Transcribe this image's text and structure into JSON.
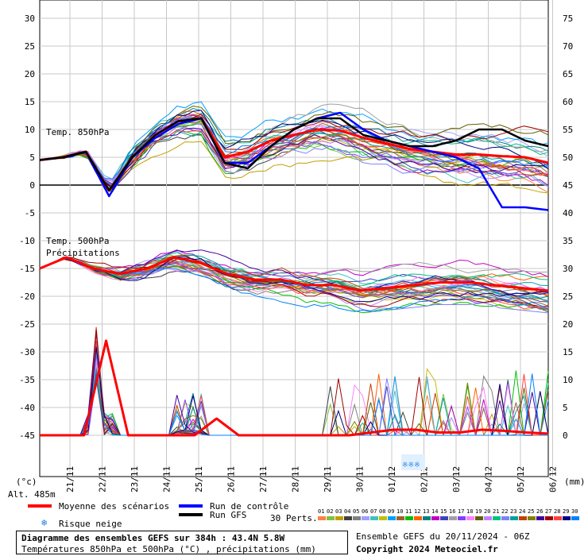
{
  "chart_data": {
    "type": "line",
    "dates": [
      "21/11",
      "22/11",
      "23/11",
      "24/11",
      "25/11",
      "26/11",
      "27/11",
      "28/11",
      "29/11",
      "30/11",
      "01/12",
      "02/12",
      "03/12",
      "04/12",
      "05/12",
      "06/12"
    ],
    "left_axis": {
      "ticks": [
        30,
        25,
        20,
        15,
        10,
        5,
        0,
        -5,
        -10,
        -15,
        -20,
        -25,
        -30,
        -35,
        -40,
        -45
      ],
      "unit_label": "(°c)"
    },
    "right_axis": {
      "ticks": [
        75,
        70,
        65,
        60,
        55,
        50,
        45,
        40,
        35,
        30,
        25,
        20,
        15,
        10,
        5,
        0
      ],
      "unit_label": "(mm)"
    },
    "labels": {
      "t850": "Temp. 850hPa",
      "t500": "Temp. 500hPa",
      "precip": "Précipitations",
      "altitude": "Alt. 485m"
    },
    "series": [
      {
        "name": "Moyenne des scénarios",
        "color": "#ff0000",
        "t850": [
          4.5,
          5,
          6,
          -1,
          5,
          9,
          11.5,
          12,
          5,
          6,
          8,
          9,
          10,
          9.8,
          8.5,
          7.5,
          6.5,
          6,
          5.5,
          5.5,
          5.2,
          5,
          4
        ],
        "t500": [
          -15,
          -13,
          -15,
          -16,
          -15,
          -13,
          -14,
          -16,
          -17,
          -17,
          -18,
          -18,
          -19,
          -18.5,
          -18,
          -17.5,
          -17.5,
          -18,
          -18.5,
          -19
        ],
        "precip": [
          0,
          0,
          0,
          17,
          0,
          0,
          0,
          0,
          3,
          0,
          0,
          0,
          0,
          0,
          0,
          0.5,
          1,
          1,
          0.5,
          0.5,
          1,
          0.8,
          0.5,
          0.3
        ]
      },
      {
        "name": "Run de contrôle",
        "color": "#0000ff",
        "t850": [
          4.5,
          5,
          6,
          -2,
          5,
          8.5,
          11,
          12,
          4,
          4,
          7,
          10,
          12,
          13,
          10,
          8,
          7,
          6,
          5,
          3,
          -4,
          -4,
          -4.5
        ]
      },
      {
        "name": "Run GFS",
        "color": "#000000",
        "t850": [
          4.5,
          5,
          6,
          -1,
          5,
          9,
          11.5,
          12,
          4,
          3,
          7,
          10,
          12,
          12,
          9,
          8,
          7,
          7,
          8,
          10,
          10,
          8,
          7
        ]
      }
    ],
    "legend": {
      "mean": "Moyenne des scénarios",
      "control": "Run de contrôle",
      "gfs": "Run GFS",
      "snow": "Risque neige",
      "perts_label": "30 Perts.",
      "pert_numbers": [
        "01",
        "02",
        "03",
        "04",
        "05",
        "06",
        "07",
        "08",
        "09",
        "10",
        "11",
        "12",
        "13",
        "14",
        "15",
        "16",
        "17",
        "18",
        "19",
        "20",
        "21",
        "22",
        "23",
        "24",
        "25",
        "26",
        "27",
        "28",
        "29",
        "30"
      ],
      "pert_colors": [
        "#ff8040",
        "#80c040",
        "#c0a000",
        "#404040",
        "#808080",
        "#a0a0ff",
        "#40c0c0",
        "#c0c000",
        "#00a0ff",
        "#a06030",
        "#00c000",
        "#ff6000",
        "#008080",
        "#c000c0",
        "#4040c0",
        "#a0a0a0",
        "#8040ff",
        "#ff80ff",
        "#606000",
        "#c080ff",
        "#00c080",
        "#8080ff",
        "#00a0a0",
        "#c04000",
        "#808000",
        "#4000a0",
        "#a00000",
        "#ff4040",
        "#000080",
        "#0080ff"
      ]
    },
    "snow_marker": "※※※",
    "footer": {
      "title": "Diagramme des ensembles GEFS sur 384h : 43.4N 5.8W",
      "subtitle": "Températures 850hPa et 500hPa (°C) , précipitations (mm)",
      "run": "Ensemble GEFS du 20/11/2024 - 06Z",
      "copyright": "Copyright 2024 Meteociel.fr"
    },
    "grid": true
  }
}
